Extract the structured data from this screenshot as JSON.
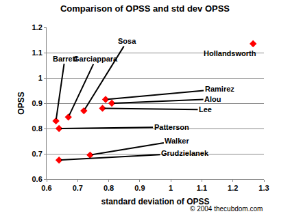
{
  "chart_data": {
    "type": "scatter",
    "title": "Comparison of OPSS and std dev OPSS",
    "x_label": "standard deviation of OPSS",
    "y_label": "OPSS",
    "point_labels": [
      "Barrett",
      "Garciappara",
      "Sosa",
      "Ramirez",
      "Alou",
      "Lee",
      "Patterson",
      "Walker",
      "Grudzielanek",
      "Hollandsworth"
    ],
    "x": [
      0.63,
      0.67,
      0.72,
      0.79,
      0.81,
      0.78,
      0.64,
      0.74,
      0.64,
      1.265
    ],
    "values": [
      0.83,
      0.845,
      0.87,
      0.915,
      0.9,
      0.88,
      0.8,
      0.695,
      0.675,
      1.135
    ],
    "color": "#ff0000",
    "marker": "diamond",
    "xlim": [
      0.6,
      1.3
    ],
    "xticks": [
      0.6,
      0.7,
      0.8,
      0.9,
      1,
      1.1,
      1.2,
      1.3
    ],
    "ylim": [
      0.6,
      1.2
    ],
    "yticks": [
      0.6,
      0.7,
      0.8,
      0.9,
      1,
      1.1,
      1.2
    ],
    "grid": true,
    "annotations": [
      "© 2004 thecubdom.com"
    ]
  }
}
